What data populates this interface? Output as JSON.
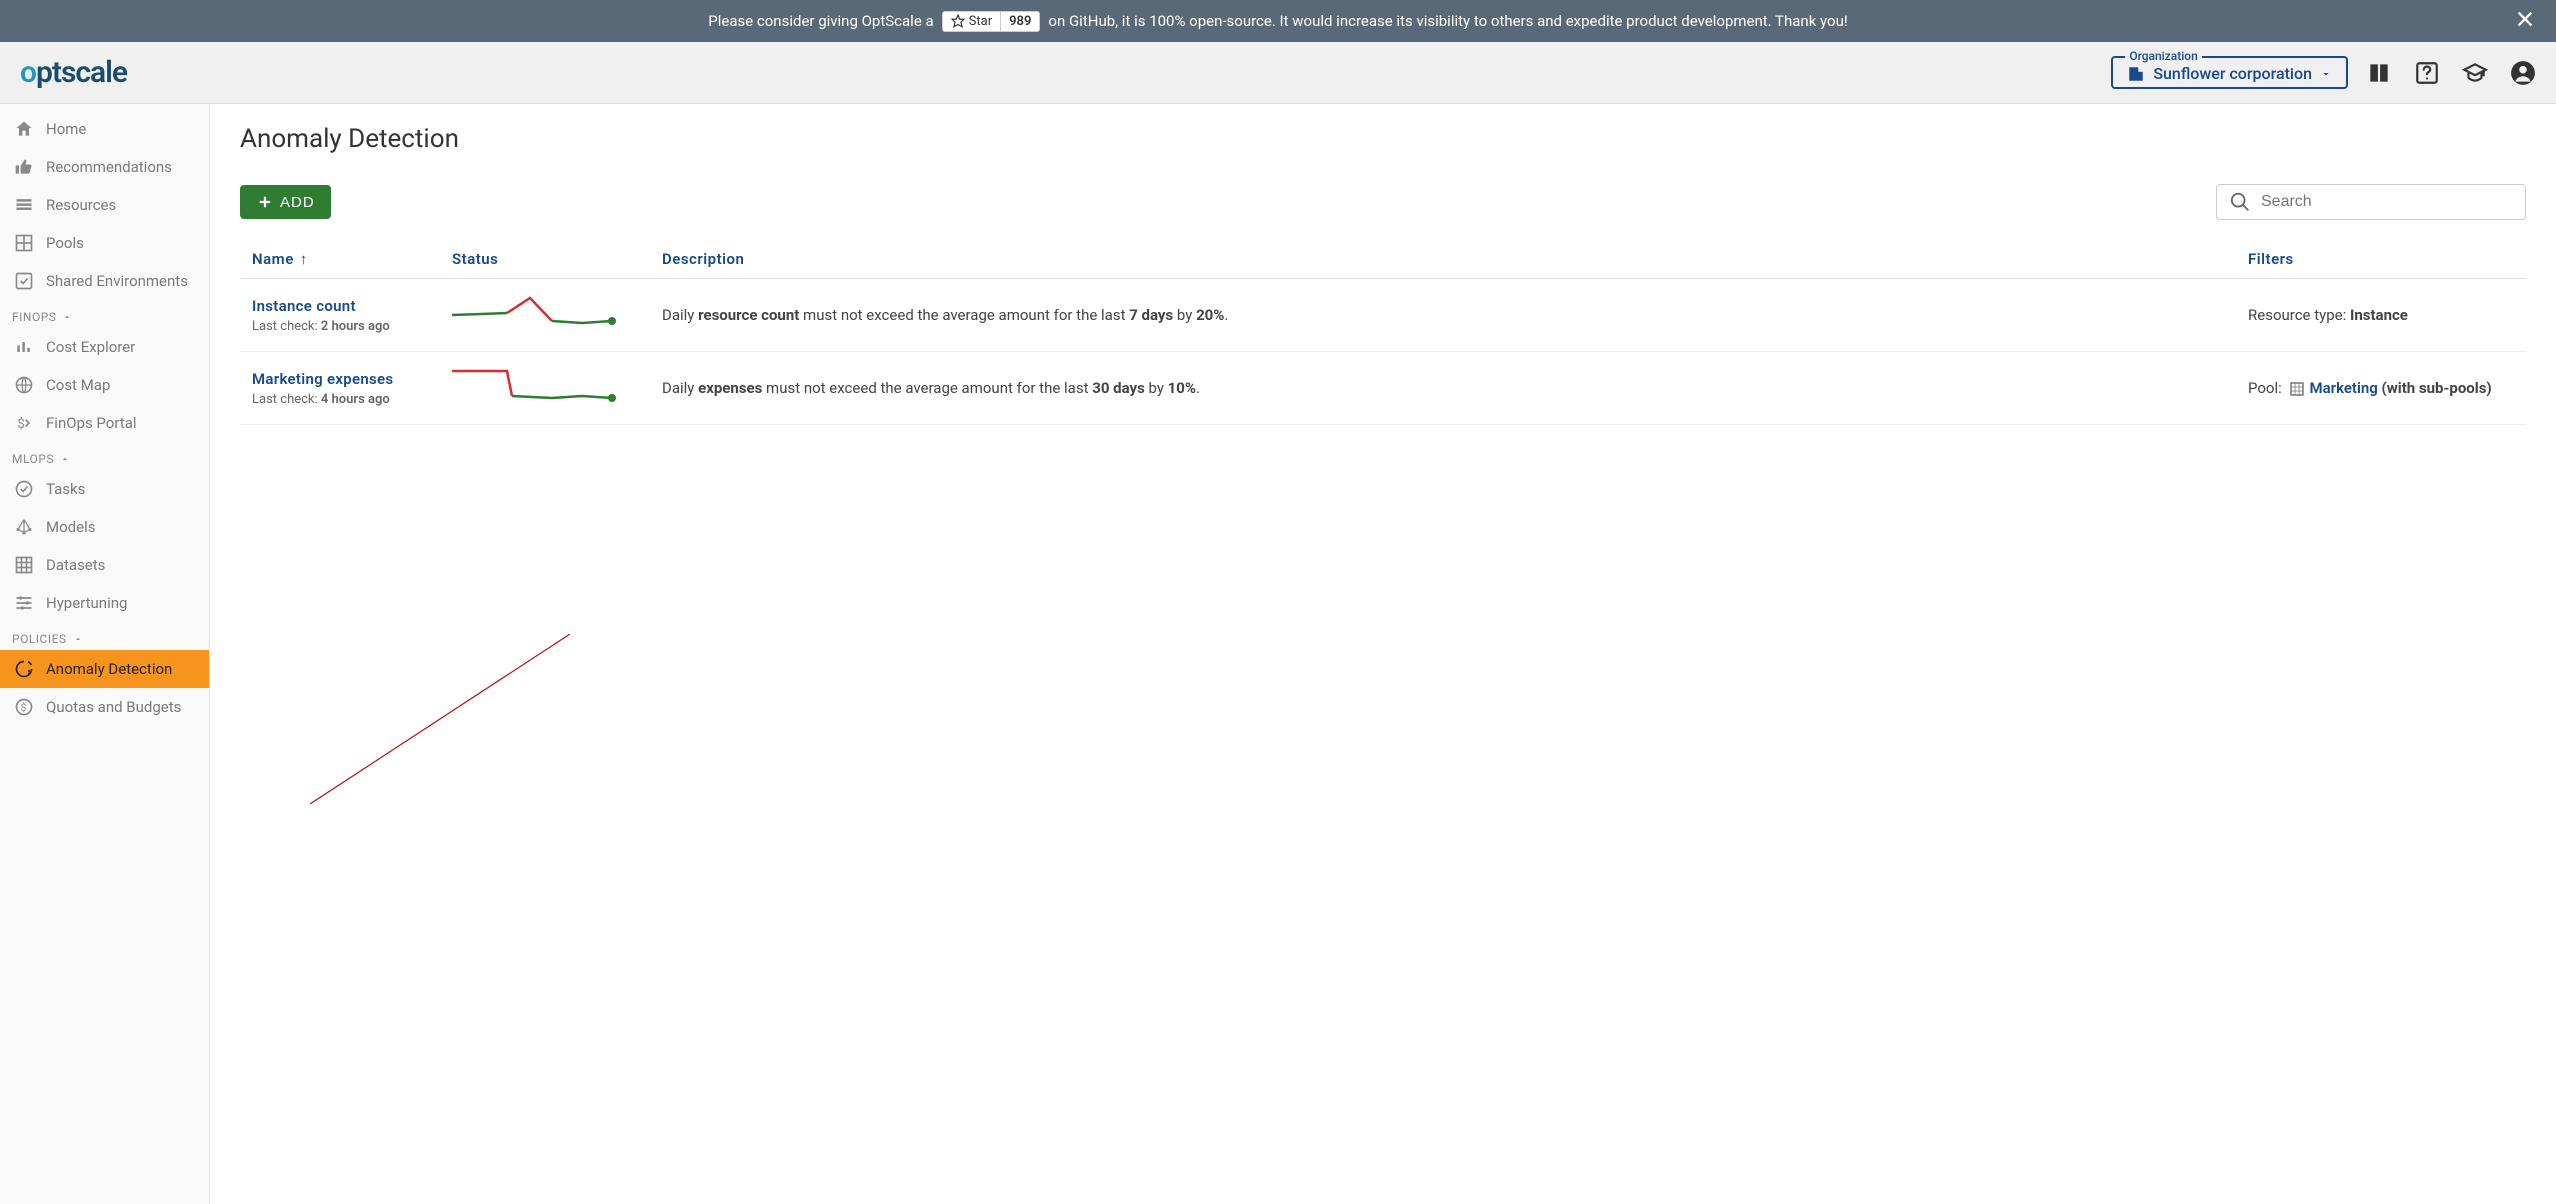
{
  "banner": {
    "text_before": "Please consider giving OptScale a",
    "star_label": "Star",
    "star_count": "989",
    "text_after": "on GitHub, it is 100% open-source. It would increase its visibility to others and expedite product development. Thank you!"
  },
  "header": {
    "logo_text_1": "o",
    "logo_text_2": "ptscale",
    "org_legend": "Organization",
    "org_name": "Sunflower corporation"
  },
  "sidebar": {
    "items_top": [
      {
        "label": "Home"
      },
      {
        "label": "Recommendations"
      },
      {
        "label": "Resources"
      },
      {
        "label": "Pools"
      },
      {
        "label": "Shared Environments"
      }
    ],
    "section_finops": "FINOPS",
    "items_finops": [
      {
        "label": "Cost Explorer"
      },
      {
        "label": "Cost Map"
      },
      {
        "label": "FinOps Portal"
      }
    ],
    "section_mlops": "MLOPS",
    "items_mlops": [
      {
        "label": "Tasks"
      },
      {
        "label": "Models"
      },
      {
        "label": "Datasets"
      },
      {
        "label": "Hypertuning"
      }
    ],
    "section_policies": "POLICIES",
    "items_policies": [
      {
        "label": "Anomaly Detection"
      },
      {
        "label": "Quotas and Budgets"
      }
    ]
  },
  "page": {
    "title": "Anomaly Detection",
    "add_button": "ADD",
    "search_placeholder": "Search",
    "columns": {
      "name": "Name",
      "status": "Status",
      "description": "Description",
      "filters": "Filters"
    },
    "rows": [
      {
        "name": "Instance count",
        "last_check_label": "Last check: ",
        "last_check_value": "2 hours ago",
        "desc_prefix": "Daily ",
        "desc_bold1": "resource count",
        "desc_mid": " must not exceed the average amount for the last ",
        "desc_bold2": "7 days",
        "desc_by": " by ",
        "desc_bold3": "20%",
        "desc_suffix": ".",
        "filter_label": "Resource type: ",
        "filter_value": "Instance",
        "filter_is_link": false,
        "spark": {
          "points": [
            [
              0,
              22
            ],
            [
              30,
              21
            ],
            [
              55,
              20
            ],
            [
              78,
              5
            ],
            [
              100,
              28
            ],
            [
              130,
              30
            ],
            [
              160,
              28
            ]
          ],
          "red_start": 2,
          "red_end": 4,
          "colors": {
            "green": "#2e7d32",
            "red": "#d32f2f",
            "dot": "#2e7d32"
          }
        }
      },
      {
        "name": "Marketing expenses",
        "last_check_label": "Last check: ",
        "last_check_value": "4 hours ago",
        "desc_prefix": "Daily ",
        "desc_bold1": "expenses",
        "desc_mid": " must not exceed the average amount for the last ",
        "desc_bold2": "30 days",
        "desc_by": " by ",
        "desc_bold3": "10%",
        "desc_suffix": ".",
        "filter_label": "Pool: ",
        "filter_value": "Marketing",
        "filter_extra": " (with sub-pools)",
        "filter_is_link": true,
        "spark": {
          "points": [
            [
              0,
              5
            ],
            [
              55,
              5
            ],
            [
              60,
              30
            ],
            [
              100,
              32
            ],
            [
              130,
              30
            ],
            [
              160,
              32
            ]
          ],
          "red_start": 0,
          "red_end": 2,
          "colors": {
            "green": "#2e7d32",
            "red": "#d32f2f",
            "dot": "#2e7d32"
          }
        }
      }
    ]
  }
}
